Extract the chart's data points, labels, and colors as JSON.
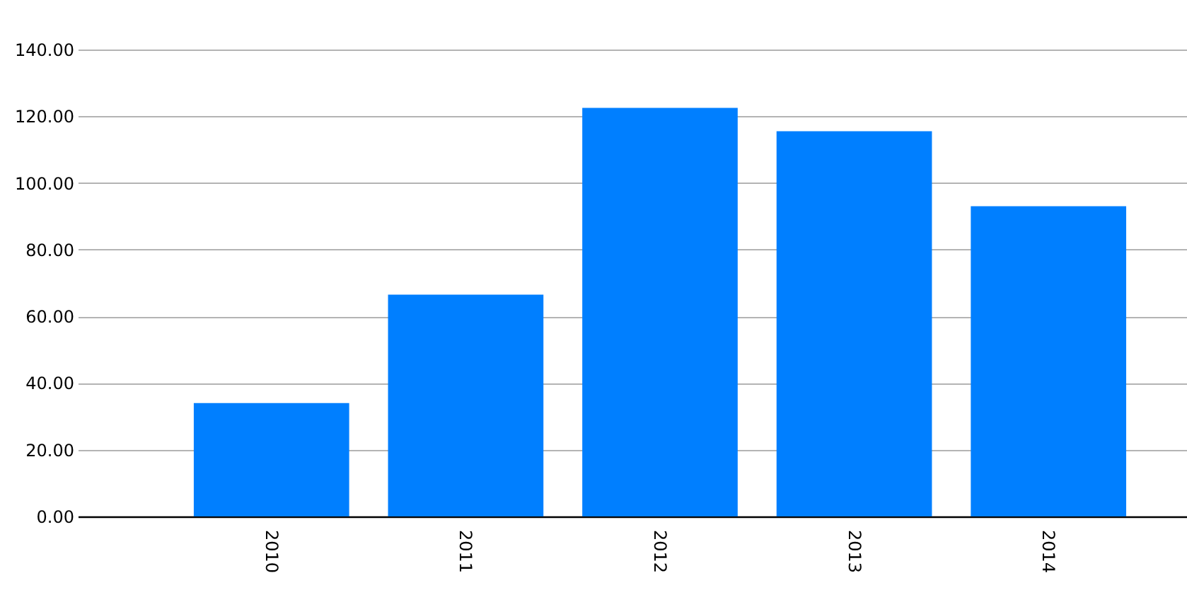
{
  "chart_data": {
    "type": "bar",
    "categories": [
      "2010",
      "2011",
      "2012",
      "2013",
      "2014"
    ],
    "values": [
      34,
      66.5,
      122.5,
      115.5,
      93
    ],
    "color": "#007fff",
    "ylim": [
      0,
      140
    ],
    "yticks": [
      {
        "value": 0,
        "label": "0.00"
      },
      {
        "value": 20,
        "label": "20.00"
      },
      {
        "value": 40,
        "label": "40.00"
      },
      {
        "value": 60,
        "label": "60.00"
      },
      {
        "value": 80,
        "label": "80.00"
      },
      {
        "value": 100,
        "label": "100.00"
      },
      {
        "value": 120,
        "label": "120.00"
      },
      {
        "value": 140,
        "label": "140.00"
      }
    ],
    "grid": "y"
  }
}
